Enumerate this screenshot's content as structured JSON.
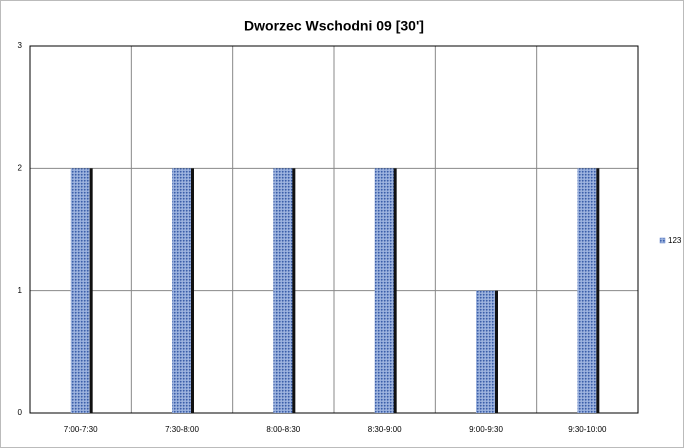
{
  "chart_data": {
    "type": "bar",
    "title": "Dworzec Wschodni 09 [30']",
    "categories": [
      "7:00-7:30",
      "7:30-8:00",
      "8:00-8:30",
      "8:30-9:00",
      "9:00-9:30",
      "9:30-10:00"
    ],
    "series": [
      {
        "name": "123",
        "color": "#5b7fc7",
        "values": [
          2,
          2,
          2,
          2,
          1,
          2
        ]
      }
    ],
    "ylim": [
      0,
      3
    ],
    "yticks": [
      0,
      1,
      2,
      3
    ],
    "grid": true,
    "legend": "right"
  }
}
